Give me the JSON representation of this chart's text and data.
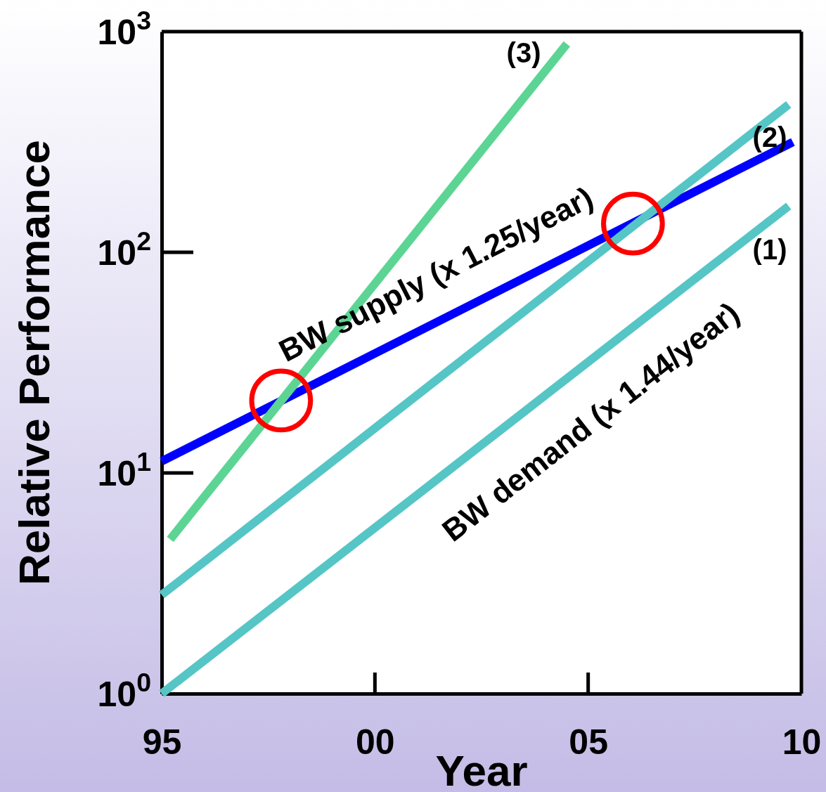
{
  "chart_data": {
    "type": "line",
    "xlabel": "Year",
    "ylabel": "Relative Performance",
    "log": "y",
    "grid": false,
    "line_style": "solid",
    "marker": "none",
    "xlim": [
      1995,
      2010
    ],
    "xticks": [
      {
        "value": 1995,
        "label": "95"
      },
      {
        "value": 2000,
        "label": "00"
      },
      {
        "value": 2005,
        "label": "05"
      },
      {
        "value": 2010,
        "label": "10"
      }
    ],
    "ylim": [
      1,
      1000
    ],
    "yticks": [
      {
        "value": 1,
        "label": "10$^{0}$"
      },
      {
        "value": 10,
        "label": "10$^{1}$"
      },
      {
        "value": 100,
        "label": "10$^{2}$"
      },
      {
        "value": 1000,
        "label": "10$^{3}$"
      }
    ],
    "series": [
      {
        "color": "#0000ff",
        "x": [
          1995,
          2009.8
        ],
        "values": [
          11.3,
          316
        ]
      },
      {
        "color": "#56c5c5",
        "x": [
          1995,
          2009.7
        ],
        "values": [
          2.8,
          467
        ]
      },
      {
        "color": "#56c5c5",
        "x": [
          1995,
          2009.7
        ],
        "values": [
          1,
          162
        ]
      },
      {
        "color": "#5cd594",
        "x": [
          1995.2,
          2004.5
        ],
        "values": [
          5,
          880
        ]
      },
      {
        "type": "scatter",
        "marker": "circle",
        "color": "#ff0000",
        "x": [
          1997.8,
          2006.05
        ],
        "values": [
          21.3,
          135
        ]
      }
    ],
    "annotations": [
      "(3)",
      "(2)",
      "(1)",
      "BW supply (x 1.25/year)",
      "BW demand  (x 1.44/year)"
    ]
  }
}
